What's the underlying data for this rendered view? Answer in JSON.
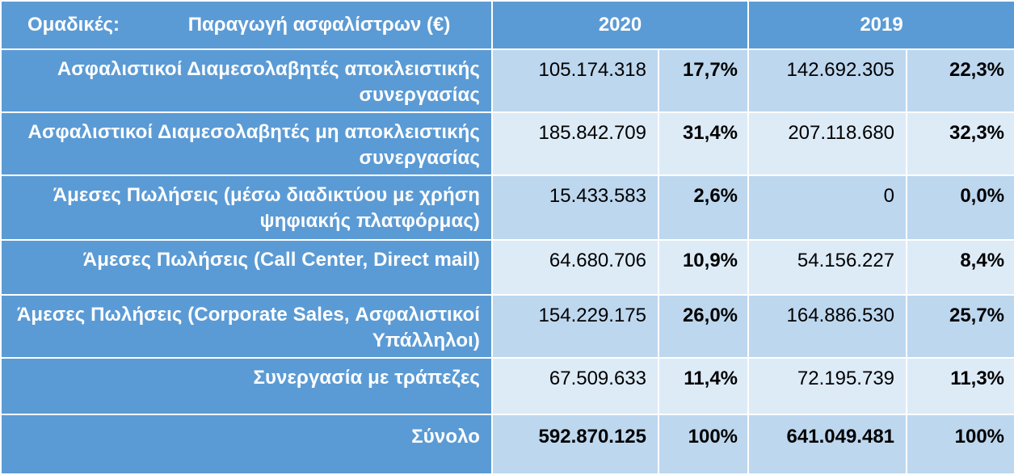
{
  "header": {
    "group_label": "Ομαδικές:",
    "measure_label": "Παραγωγή ασφαλίστρων   (€)",
    "year_2020": "2020",
    "year_2019": "2019"
  },
  "rows": [
    {
      "label": "Ασφαλιστικοί Διαμεσολαβητές αποκλειστικής συνεργασίας",
      "v2020": "105.174.318",
      "p2020": "17,7%",
      "v2019": "142.692.305",
      "p2019": "22,3%"
    },
    {
      "label": "Ασφαλιστικοί Διαμεσολαβητές  μη αποκλειστικής συνεργασίας",
      "v2020": "185.842.709",
      "p2020": "31,4%",
      "v2019": "207.118.680",
      "p2019": "32,3%"
    },
    {
      "label": "Άμεσες Πωλήσεις  (μέσω διαδικτύου με χρήση ψηφιακής πλατφόρμας)",
      "v2020": "15.433.583",
      "p2020": "2,6%",
      "v2019": "0",
      "p2019": "0,0%"
    },
    {
      "label": "Άμεσες Πωλήσεις  (Call Center,  Direct mail)",
      "v2020": "64.680.706",
      "p2020": "10,9%",
      "v2019": "54.156.227",
      "p2019": "8,4%"
    },
    {
      "label": "Άμεσες Πωλήσεις  (Corporate Sales, Ασφαλιστικοί Υπάλληλοι)",
      "v2020": "154.229.175",
      "p2020": "26,0%",
      "v2019": "164.886.530",
      "p2019": "25,7%"
    },
    {
      "label": "Συνεργασία με τράπεζες",
      "v2020": "67.509.633",
      "p2020": "11,4%",
      "v2019": "72.195.739",
      "p2019": "11,3%"
    }
  ],
  "total": {
    "label": "Σύνολο",
    "v2020": "592.870.125",
    "p2020": "100%",
    "v2019": "641.049.481",
    "p2019": "100%"
  },
  "colors": {
    "header_blue": "#5b9bd5",
    "band_light": "#bdd7ee",
    "band_lighter": "#ddebf7",
    "text_white": "#ffffff",
    "text_black": "#000000"
  }
}
